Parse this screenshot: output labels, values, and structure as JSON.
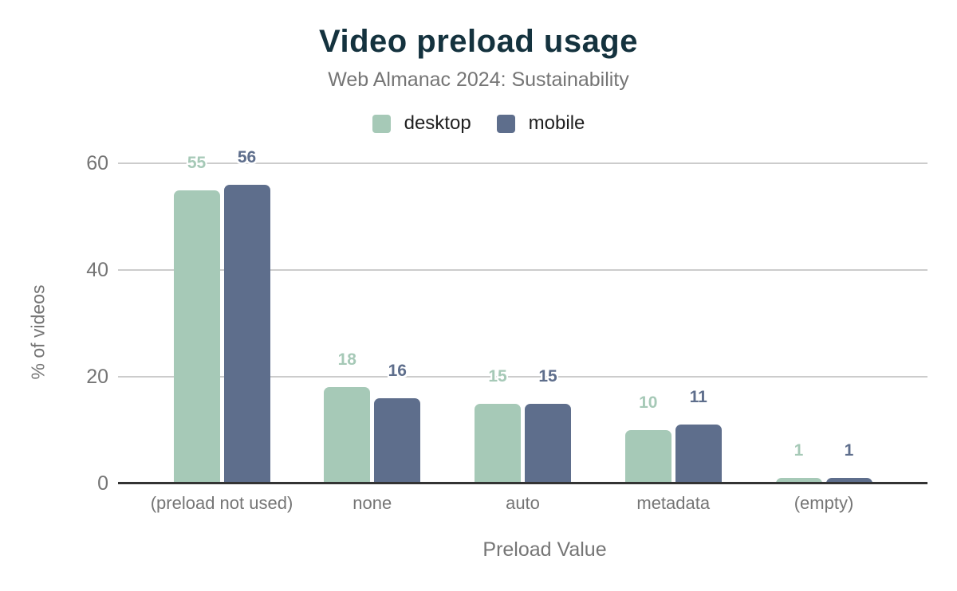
{
  "chart_data": {
    "type": "bar",
    "title": "Video preload usage",
    "subtitle": "Web Almanac 2024: Sustainability",
    "xlabel": "Preload Value",
    "ylabel": "% of videos",
    "categories": [
      "(preload not used)",
      "none",
      "auto",
      "metadata",
      "(empty)"
    ],
    "series": [
      {
        "name": "desktop",
        "color": "#a6c9b7",
        "values": [
          55,
          18,
          15,
          10,
          1
        ]
      },
      {
        "name": "mobile",
        "color": "#5e6e8c",
        "values": [
          56,
          16,
          15,
          11,
          1
        ]
      }
    ],
    "y_ticks": [
      0,
      20,
      40,
      60
    ],
    "ylim": [
      0,
      60
    ],
    "grid": true,
    "legend_position": "top",
    "colors": {
      "title": "#14323e",
      "axis_text": "#757575",
      "legend_text": "#1f1f1f",
      "gridline": "#cccccc",
      "baseline": "#333333",
      "background": "#ffffff"
    }
  }
}
